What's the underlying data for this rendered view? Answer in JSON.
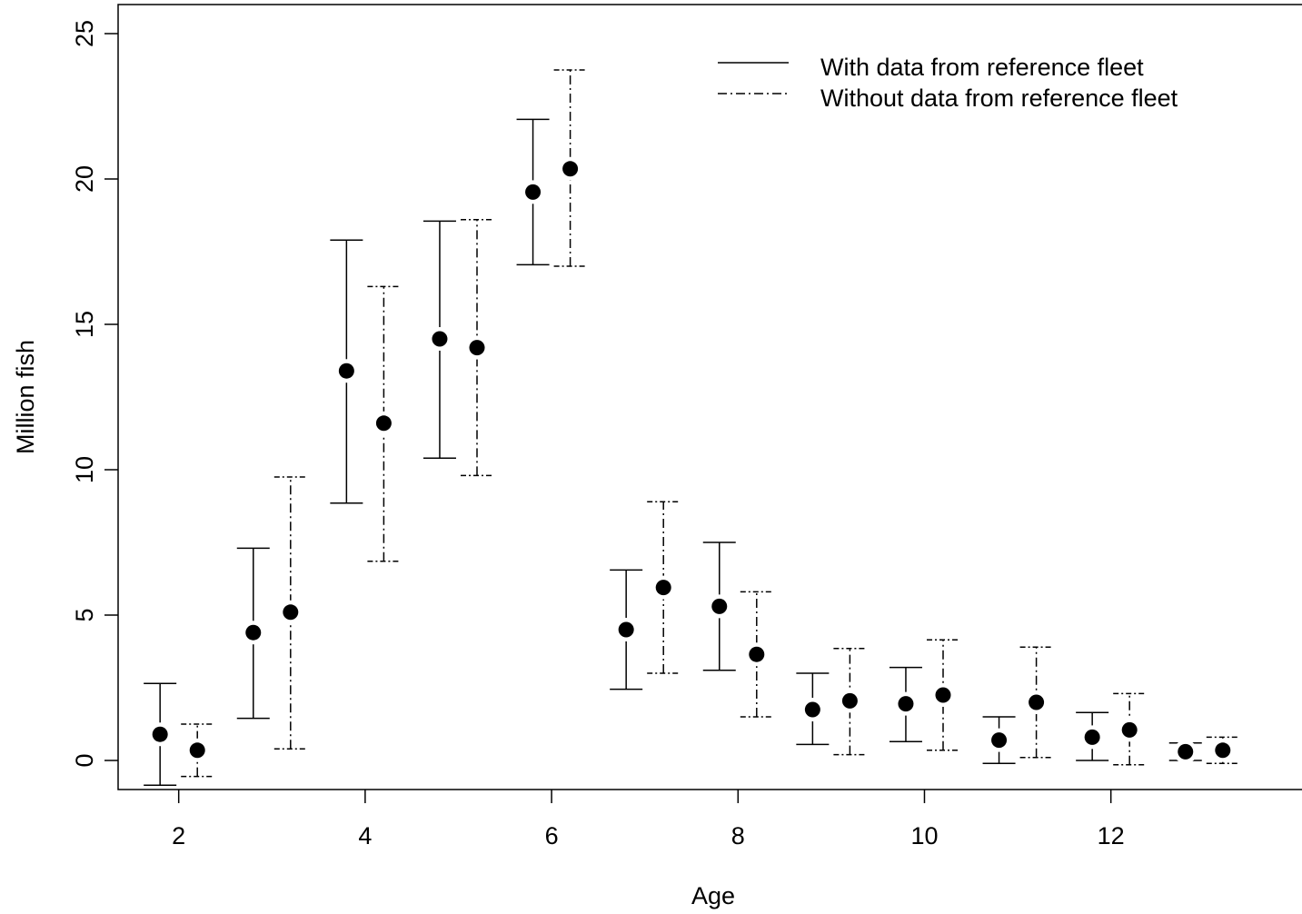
{
  "chart_data": {
    "type": "scatter",
    "subtype": "point-with-error-bars",
    "title": "",
    "xlabel": "Age",
    "ylabel": "Million fish",
    "xlim": [
      1.35,
      14.05
    ],
    "ylim": [
      -1.0,
      26.0
    ],
    "x_ticks": [
      2,
      4,
      6,
      8,
      10,
      12
    ],
    "y_ticks": [
      0,
      5,
      10,
      15,
      20,
      25
    ],
    "grid": false,
    "legend_position": "top-right",
    "series": [
      {
        "name": "With data from reference fleet",
        "line_style": "solid",
        "points": [
          {
            "x": 1.8,
            "y": 0.9,
            "lower": -0.85,
            "upper": 2.65
          },
          {
            "x": 2.8,
            "y": 4.4,
            "lower": 1.45,
            "upper": 7.3
          },
          {
            "x": 3.8,
            "y": 13.4,
            "lower": 8.85,
            "upper": 17.9
          },
          {
            "x": 4.8,
            "y": 14.5,
            "lower": 10.4,
            "upper": 18.55
          },
          {
            "x": 5.8,
            "y": 19.55,
            "lower": 17.05,
            "upper": 22.05
          },
          {
            "x": 6.8,
            "y": 4.5,
            "lower": 2.45,
            "upper": 6.55
          },
          {
            "x": 7.8,
            "y": 5.3,
            "lower": 3.1,
            "upper": 7.5
          },
          {
            "x": 8.8,
            "y": 1.75,
            "lower": 0.55,
            "upper": 3.0
          },
          {
            "x": 9.8,
            "y": 1.95,
            "lower": 0.65,
            "upper": 3.2
          },
          {
            "x": 10.8,
            "y": 0.7,
            "lower": -0.1,
            "upper": 1.5
          },
          {
            "x": 11.8,
            "y": 0.8,
            "lower": 0.0,
            "upper": 1.65
          },
          {
            "x": 12.8,
            "y": 0.3,
            "lower": 0.0,
            "upper": 0.6
          }
        ]
      },
      {
        "name": "Without data from reference fleet",
        "line_style": "dot-dash",
        "points": [
          {
            "x": 2.2,
            "y": 0.35,
            "lower": -0.55,
            "upper": 1.25
          },
          {
            "x": 3.2,
            "y": 5.1,
            "lower": 0.4,
            "upper": 9.75
          },
          {
            "x": 4.2,
            "y": 11.6,
            "lower": 6.85,
            "upper": 16.3
          },
          {
            "x": 5.2,
            "y": 14.2,
            "lower": 9.8,
            "upper": 18.6
          },
          {
            "x": 6.2,
            "y": 20.35,
            "lower": 17.0,
            "upper": 23.75
          },
          {
            "x": 7.2,
            "y": 5.95,
            "lower": 3.0,
            "upper": 8.9
          },
          {
            "x": 8.2,
            "y": 3.65,
            "lower": 1.5,
            "upper": 5.8
          },
          {
            "x": 9.2,
            "y": 2.05,
            "lower": 0.2,
            "upper": 3.85
          },
          {
            "x": 10.2,
            "y": 2.25,
            "lower": 0.35,
            "upper": 4.15
          },
          {
            "x": 11.2,
            "y": 2.0,
            "lower": 0.1,
            "upper": 3.9
          },
          {
            "x": 12.2,
            "y": 1.05,
            "lower": -0.15,
            "upper": 2.3
          },
          {
            "x": 13.2,
            "y": 0.35,
            "lower": -0.1,
            "upper": 0.8
          }
        ]
      }
    ]
  }
}
